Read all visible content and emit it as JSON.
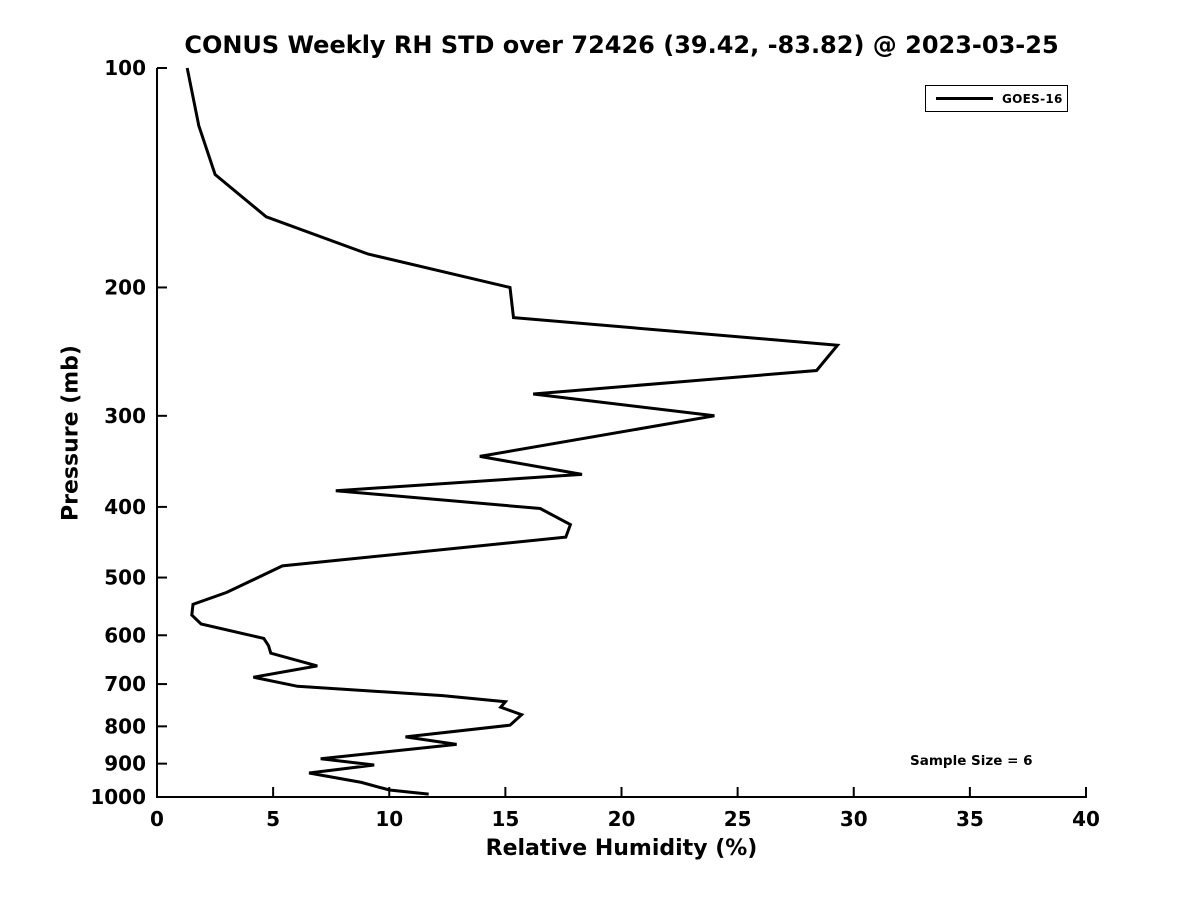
{
  "chart_data": {
    "type": "line",
    "title": "CONUS Weekly RH STD over 72426 (39.42, -83.82) @ 2023-03-25",
    "xlabel": "Relative Humidity (%)",
    "ylabel": "Pressure (mb)",
    "xlim": [
      0,
      40
    ],
    "ylim": [
      100,
      1000
    ],
    "y_scale": "log",
    "y_inverted": true,
    "grid": false,
    "x_ticks": [
      0,
      5,
      10,
      15,
      20,
      25,
      30,
      35,
      40
    ],
    "y_ticks": [
      100,
      200,
      300,
      400,
      500,
      600,
      700,
      800,
      900,
      1000
    ],
    "legend_position": "top-right",
    "line_color": "#000000",
    "annotations": [
      "Sample Size = 6"
    ],
    "series": [
      {
        "name": "GOES-16",
        "color": "#000000",
        "points_format": "[relative_humidity_percent, pressure_mb]",
        "points": [
          [
            1.3,
            100
          ],
          [
            1.8,
            120
          ],
          [
            2.5,
            140
          ],
          [
            4.7,
            160
          ],
          [
            9.1,
            180
          ],
          [
            15.2,
            200
          ],
          [
            15.35,
            220
          ],
          [
            29.3,
            240
          ],
          [
            28.4,
            260
          ],
          [
            16.2,
            280
          ],
          [
            24.0,
            300
          ],
          [
            13.9,
            341
          ],
          [
            18.3,
            361
          ],
          [
            7.7,
            380
          ],
          [
            16.5,
            402
          ],
          [
            17.8,
            423
          ],
          [
            17.6,
            440
          ],
          [
            5.4,
            482
          ],
          [
            3.0,
            524
          ],
          [
            1.55,
            544
          ],
          [
            1.5,
            563
          ],
          [
            1.9,
            579
          ],
          [
            4.6,
            606
          ],
          [
            4.8,
            620
          ],
          [
            4.9,
            635
          ],
          [
            6.9,
            661
          ],
          [
            4.15,
            685
          ],
          [
            6.05,
            705
          ],
          [
            12.3,
            726
          ],
          [
            15.0,
            740
          ],
          [
            14.8,
            753
          ],
          [
            15.7,
            771
          ],
          [
            15.2,
            797
          ],
          [
            10.7,
            827
          ],
          [
            12.9,
            847
          ],
          [
            7.05,
            886
          ],
          [
            9.35,
            904
          ],
          [
            6.55,
            927
          ],
          [
            8.8,
            955
          ],
          [
            10.0,
            978
          ],
          [
            11.7,
            991
          ]
        ]
      }
    ]
  }
}
